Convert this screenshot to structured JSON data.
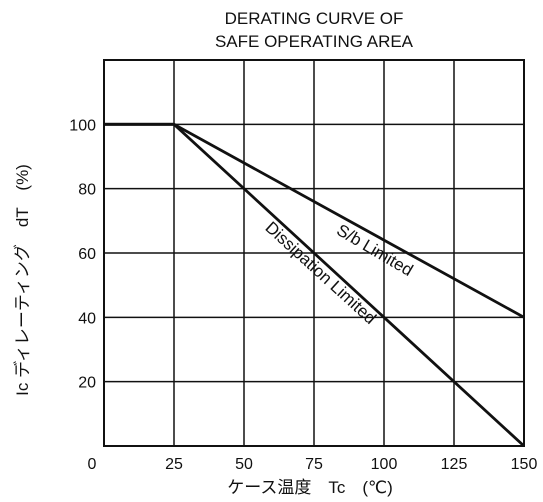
{
  "chart_data": {
    "type": "line",
    "title": [
      "DERATING CURVE OF",
      "SAFE OPERATING AREA"
    ],
    "xlabel": "ケース温度　Tc　(℃)",
    "ylabel": "Ic ディレーティング　dT　(%)",
    "xlim": [
      0,
      150
    ],
    "ylim": [
      0,
      120
    ],
    "x_ticks": [
      "0",
      "25",
      "50",
      "75",
      "100",
      "125",
      "150"
    ],
    "y_ticks": [
      "20",
      "40",
      "60",
      "80",
      "100"
    ],
    "grid": true,
    "series": [
      {
        "name": "S/b Limited",
        "x": [
          0,
          25,
          150
        ],
        "y": [
          100,
          100,
          40
        ]
      },
      {
        "name": "Dissipation Limited",
        "x": [
          0,
          25,
          150
        ],
        "y": [
          100,
          100,
          0
        ]
      }
    ]
  }
}
